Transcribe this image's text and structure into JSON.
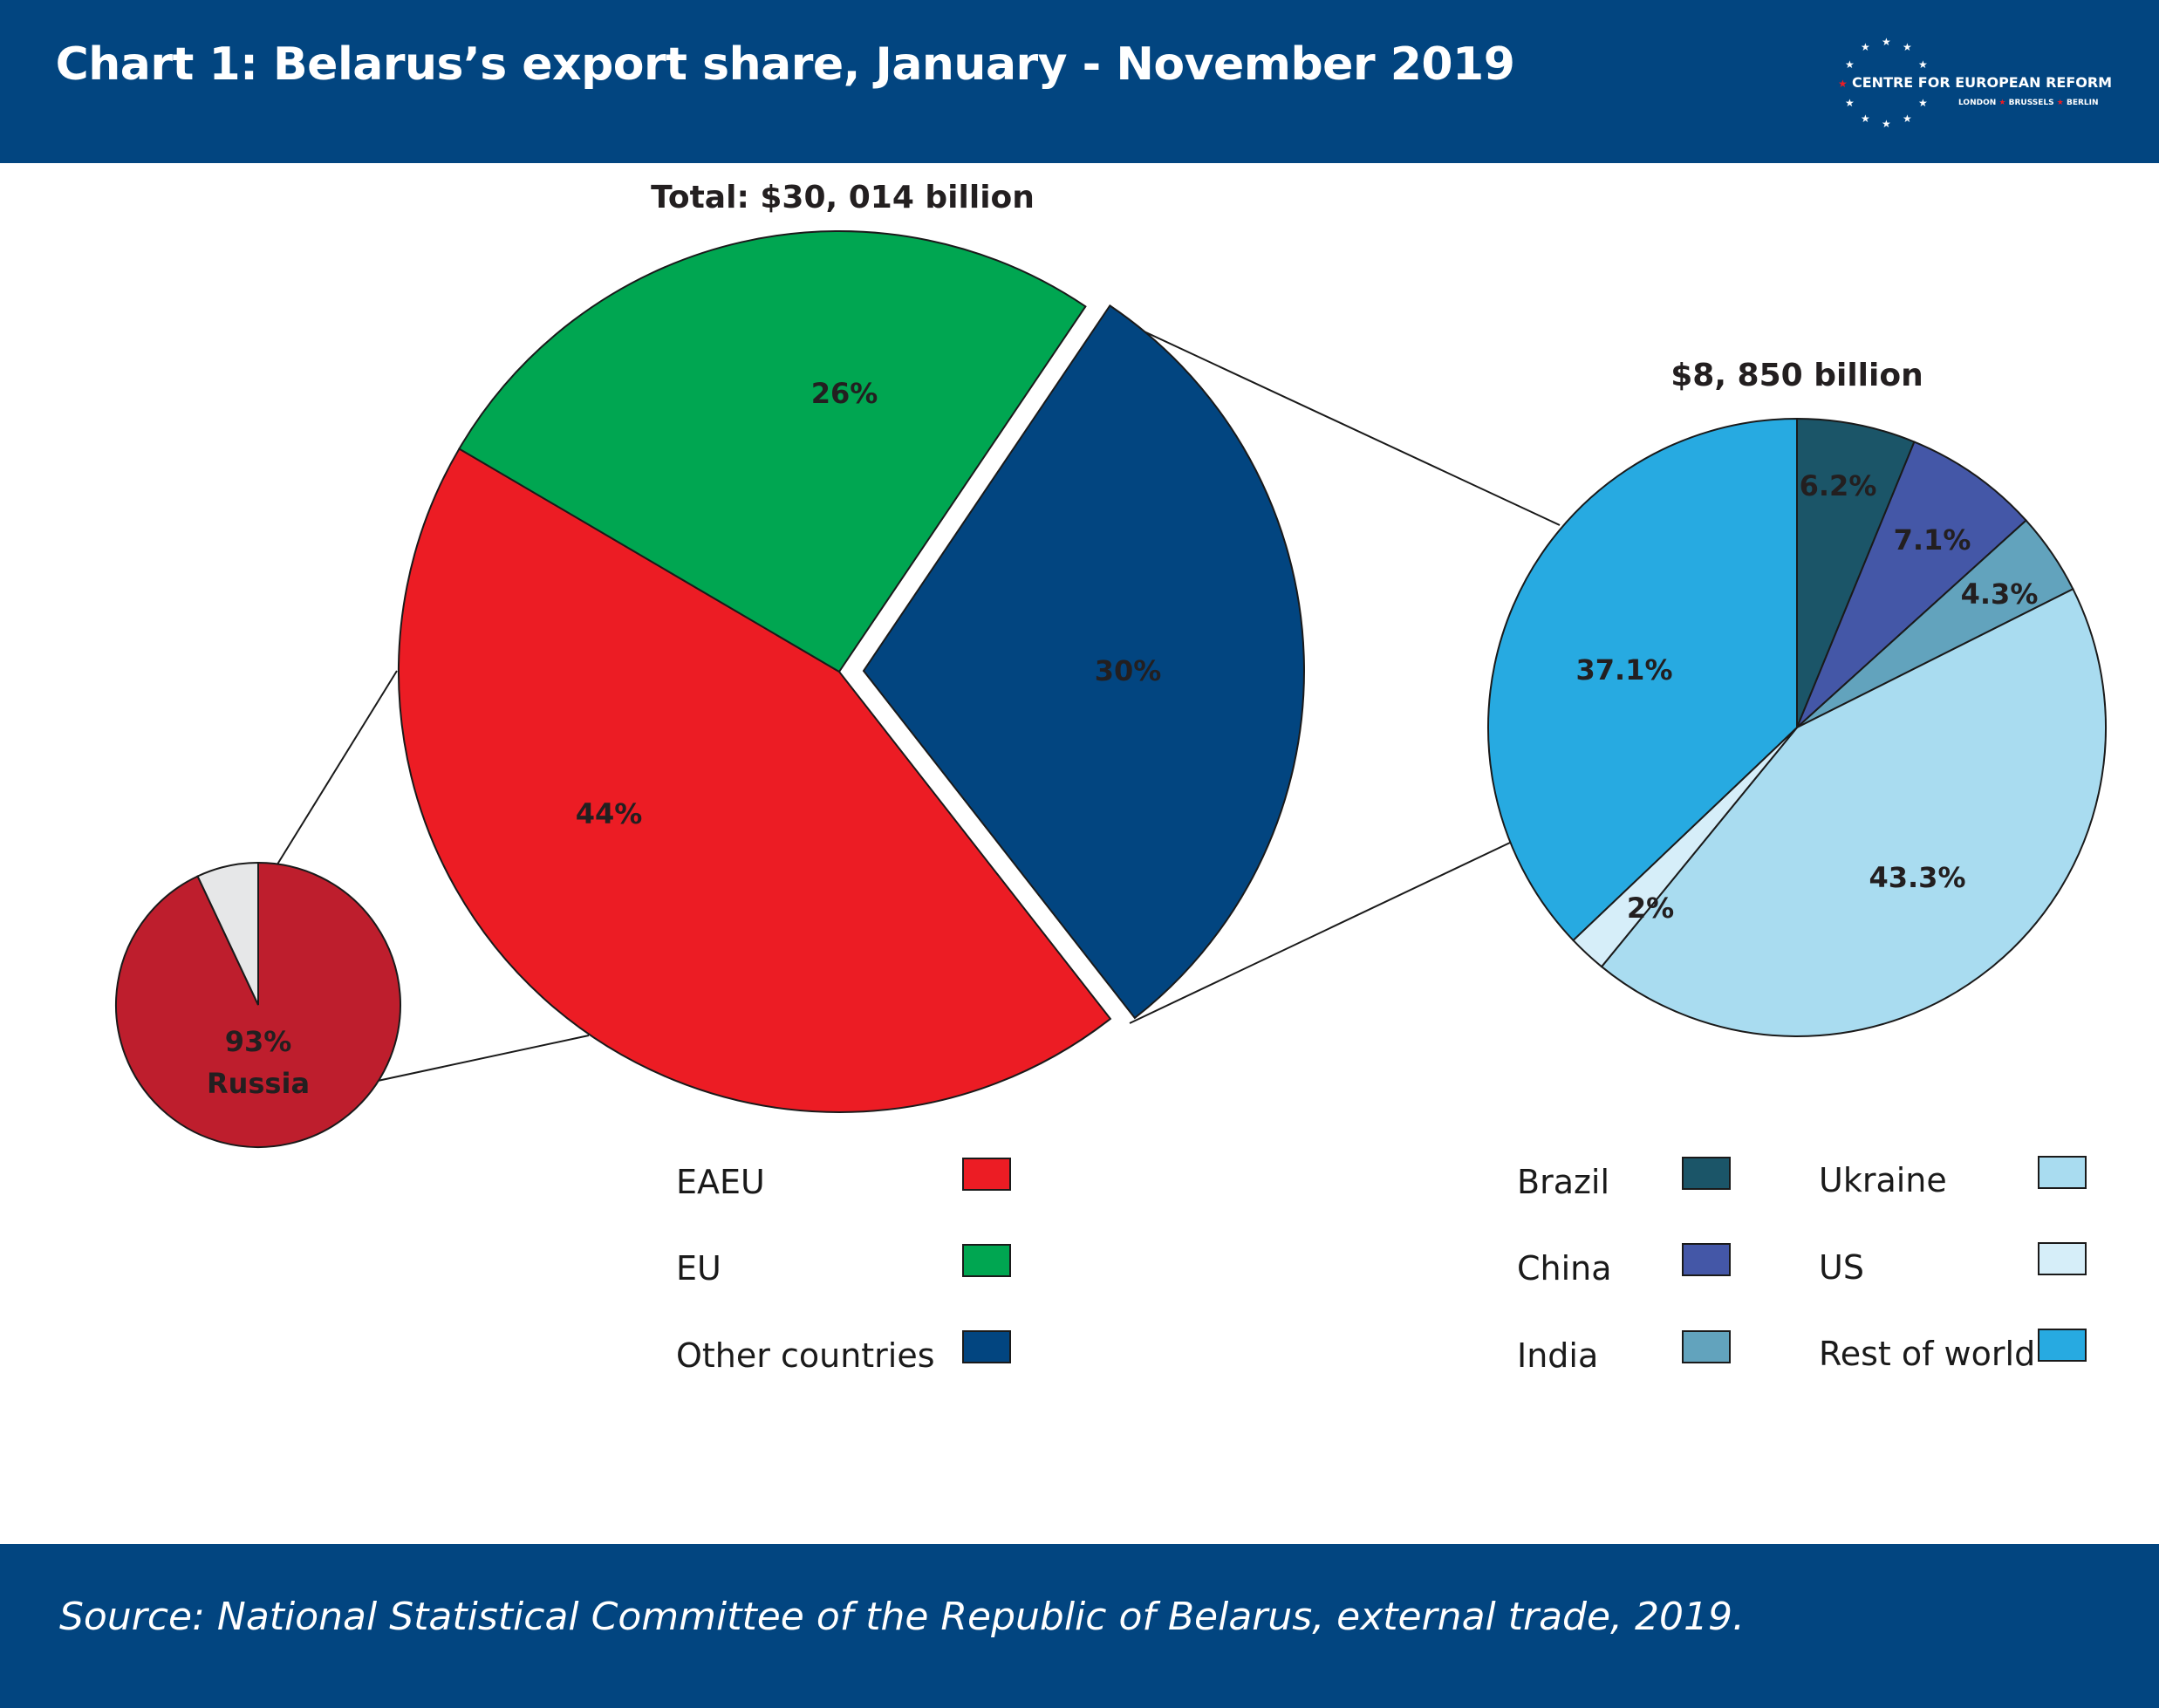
{
  "header": {
    "title": "Chart 1: Belarus’s export share, January - November 2019",
    "logo_name": "CENTRE FOR EUROPEAN REFORM",
    "logo_cities": [
      "LONDON",
      "BRUSSELS",
      "BERLIN"
    ]
  },
  "footer": {
    "source": "Source: National Statistical Committee of  the Republic of Belarus, external trade, 2019."
  },
  "chart_data": [
    {
      "type": "pie",
      "title": "Total: $30, 014 billion",
      "slices": [
        {
          "name": "EAEU",
          "value": 44,
          "label": "44%",
          "color": "#ec1c24"
        },
        {
          "name": "EU",
          "value": 26,
          "label": "26%",
          "color": "#00a651"
        },
        {
          "name": "Other countries",
          "value": 30,
          "label": "30%",
          "color": "#024580"
        }
      ]
    },
    {
      "type": "pie",
      "title": "",
      "slices": [
        {
          "name": "Russia",
          "value": 93,
          "label": "93%",
          "label2": "Russia",
          "color": "#be1e2d"
        },
        {
          "name": "",
          "value": 7,
          "label": "",
          "color": "#e6e7e8"
        }
      ]
    },
    {
      "type": "pie",
      "title": "$8, 850 billion",
      "slices": [
        {
          "name": "Brazil",
          "value": 6.2,
          "label": "6.2%",
          "color": "#1b5568"
        },
        {
          "name": "China",
          "value": 7.1,
          "label": "7.1%",
          "color": "#4457a7"
        },
        {
          "name": "India",
          "value": 4.3,
          "label": "4.3%",
          "color": "#62a3bd"
        },
        {
          "name": "Ukraine",
          "value": 43.3,
          "label": "43.3%",
          "color": "#a9dcf0"
        },
        {
          "name": "US",
          "value": 2,
          "label": "2%",
          "color": "#d6eef9"
        },
        {
          "name": "Rest of world",
          "value": 37.1,
          "label": "37.1%",
          "color": "#27aae1"
        }
      ]
    }
  ],
  "legends": {
    "main": [
      "EAEU",
      "EU",
      "Other countries"
    ],
    "other_col1": [
      "Brazil",
      "China",
      "India"
    ],
    "other_col2": [
      "Ukraine",
      "US",
      "Rest of world"
    ]
  }
}
